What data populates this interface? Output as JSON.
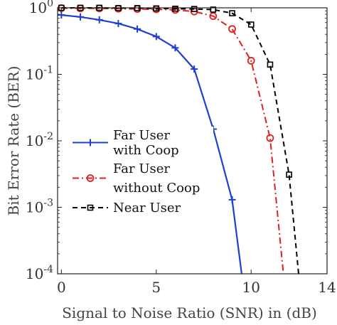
{
  "chart_data": {
    "type": "line",
    "title": "",
    "xlabel": "Signal to Noise Ratio (SNR) in (dB)",
    "ylabel": "Bit Error Rate (BER)",
    "xlim": [
      -0.2,
      14
    ],
    "ylim": [
      0.0001,
      1
    ],
    "yscale": "log",
    "x_ticks": [
      0,
      5,
      10,
      14
    ],
    "y_ticks": [
      {
        "value": 1,
        "base": "10",
        "exp": "0"
      },
      {
        "value": 0.1,
        "base": "10",
        "exp": "-1"
      },
      {
        "value": 0.01,
        "base": "10",
        "exp": "-2"
      },
      {
        "value": 0.001,
        "base": "10",
        "exp": "-3"
      },
      {
        "value": 0.0001,
        "base": "10",
        "exp": "-4"
      }
    ],
    "grid": false,
    "legend_position": "left",
    "series": [
      {
        "name": "Far User with Coop",
        "legend_lines": [
          "Far User",
          "with Coop"
        ],
        "color": "#1f3fd0",
        "line_style": "solid",
        "marker": "plus",
        "x": [
          0,
          1,
          2,
          3,
          4,
          5,
          6,
          7,
          8,
          9,
          9.5
        ],
        "y": [
          0.78,
          0.73,
          0.66,
          0.58,
          0.48,
          0.37,
          0.25,
          0.12,
          0.015,
          0.0013,
          0.0001
        ]
      },
      {
        "name": "Far User without Coop",
        "legend_lines": [
          "Far User",
          "without Coop"
        ],
        "color": "#e02020",
        "line_style": "dashdot",
        "marker": "circle",
        "x": [
          0,
          1,
          2,
          3,
          4,
          5,
          6,
          7,
          8,
          9,
          10,
          11,
          11.7
        ],
        "y": [
          0.99,
          0.98,
          0.98,
          0.97,
          0.96,
          0.95,
          0.93,
          0.88,
          0.75,
          0.48,
          0.16,
          0.011,
          0.0001
        ]
      },
      {
        "name": "Near User",
        "legend_lines": [
          "Near User"
        ],
        "color": "#000000",
        "line_style": "dashed",
        "marker": "square",
        "x": [
          0,
          1,
          2,
          3,
          4,
          5,
          6,
          7,
          8,
          9,
          10,
          11,
          12,
          12.5
        ],
        "y": [
          1.0,
          1.0,
          1.0,
          0.99,
          0.99,
          0.98,
          0.97,
          0.96,
          0.94,
          0.83,
          0.56,
          0.14,
          0.0031,
          0.0001
        ]
      }
    ]
  }
}
